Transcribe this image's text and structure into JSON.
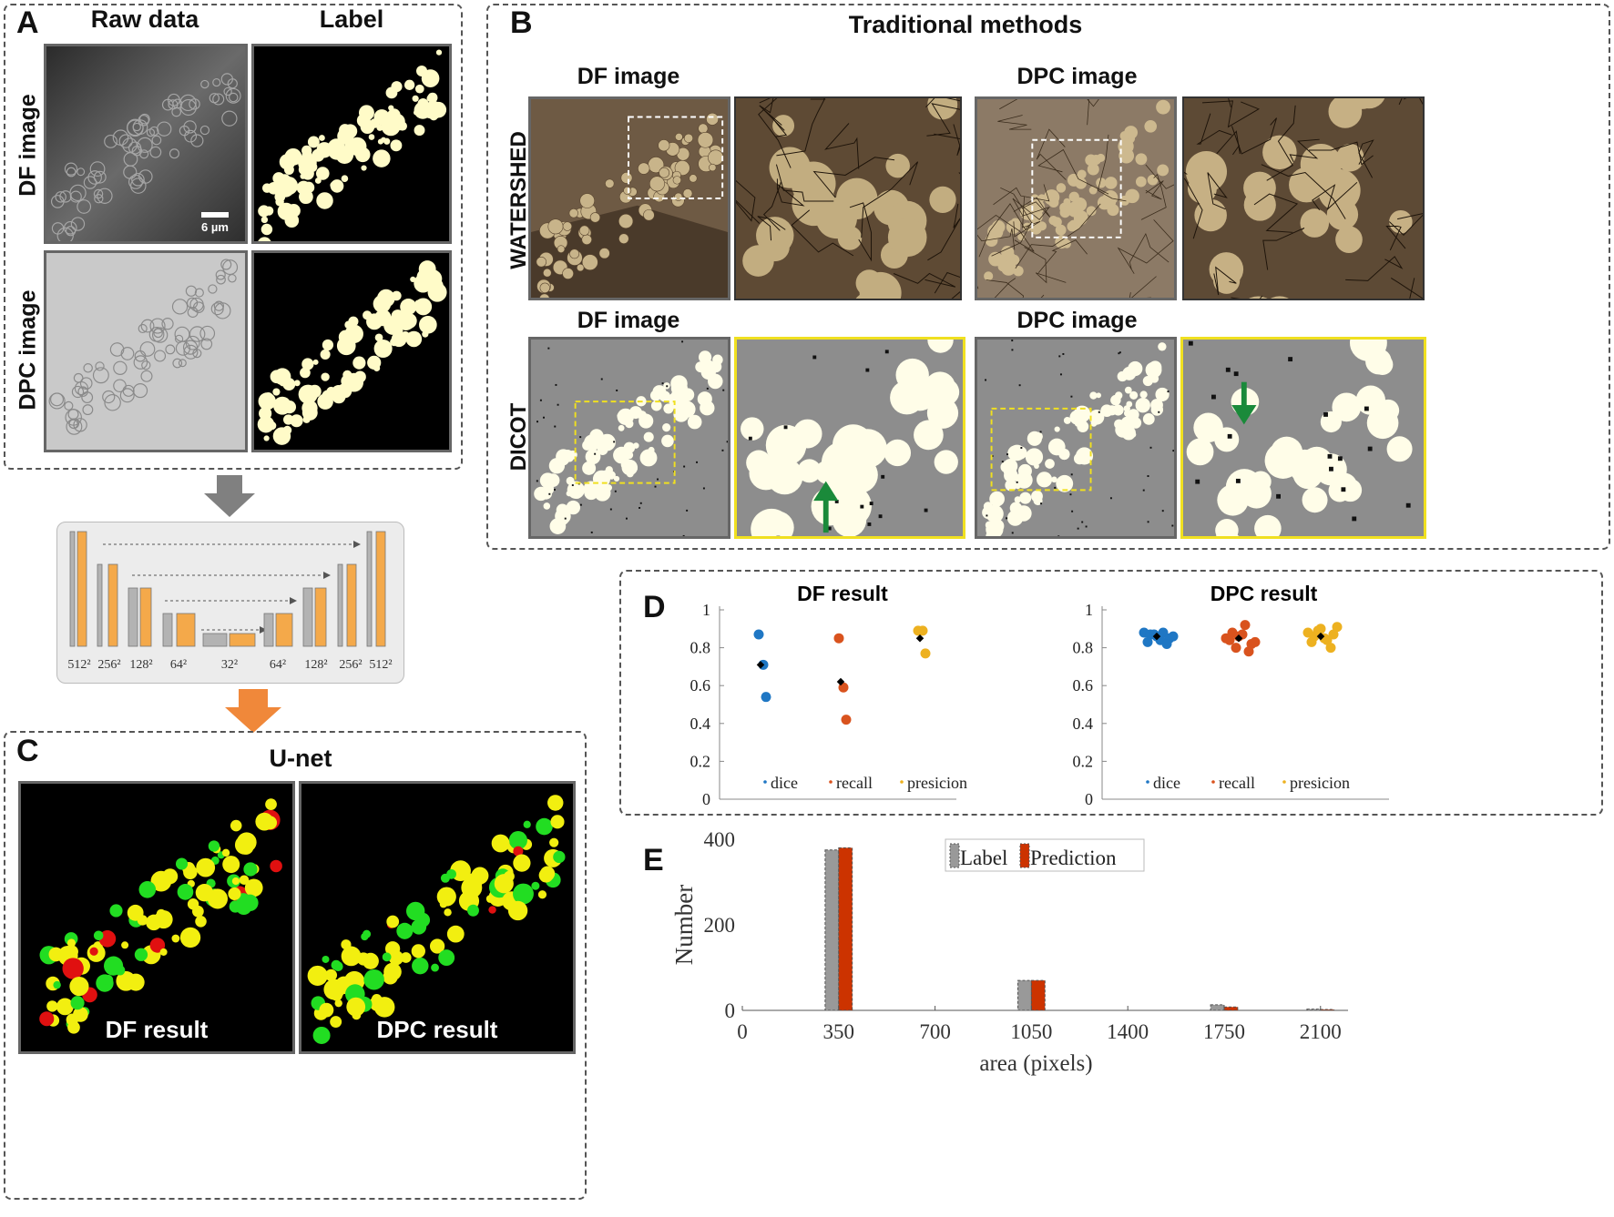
{
  "panel_a": {
    "letter": "A",
    "col_headers": [
      "Raw data",
      "Label"
    ],
    "row_labels": [
      "DF image",
      "DPC image"
    ],
    "scale_bar": "6 µm"
  },
  "unet_diagram": {
    "sizes": [
      "512²",
      "256²",
      "128²",
      "64²",
      "32²",
      "64²",
      "128²",
      "256²",
      "512²"
    ]
  },
  "panel_b": {
    "letter": "B",
    "title": "Traditional methods",
    "col_labels": [
      "DF image",
      "DPC image"
    ],
    "row_labels": [
      "WATERSHED",
      "DICOT"
    ]
  },
  "panel_c": {
    "letter": "C",
    "title": "U-net",
    "captions": [
      "DF result",
      "DPC result"
    ]
  },
  "panel_d": {
    "letter": "D",
    "plots": [
      {
        "title": "DF result",
        "legend": [
          "dice",
          "recall",
          "presicion"
        ]
      },
      {
        "title": "DPC result",
        "legend": [
          "dice",
          "recall",
          "presicion"
        ]
      }
    ],
    "yticks": [
      "0",
      "0.2",
      "0.4",
      "0.6",
      "0.8",
      "1"
    ]
  },
  "panel_e": {
    "letter": "E"
  },
  "colors": {
    "dice": "#1f77c4",
    "recall": "#d9531e",
    "precision": "#edb120",
    "label_bar": "#999999",
    "prediction_bar": "#cc3300"
  },
  "chart_data": [
    {
      "type": "scatter",
      "title": "DF result",
      "ylim": [
        0,
        1
      ],
      "legend": [
        "dice",
        "recall",
        "presicion"
      ],
      "series": [
        {
          "name": "dice",
          "values": [
            0.87,
            0.71,
            0.54
          ],
          "mean": 0.71
        },
        {
          "name": "recall",
          "values": [
            0.85,
            0.59,
            0.42
          ],
          "mean": 0.62
        },
        {
          "name": "presicion",
          "values": [
            0.89,
            0.89,
            0.77
          ],
          "mean": 0.85
        }
      ]
    },
    {
      "type": "scatter",
      "title": "DPC result",
      "ylim": [
        0,
        1
      ],
      "legend": [
        "dice",
        "recall",
        "presicion"
      ],
      "series": [
        {
          "name": "dice",
          "values": [
            0.88,
            0.87,
            0.86,
            0.88,
            0.85,
            0.83,
            0.87,
            0.84,
            0.82,
            0.86
          ],
          "mean": 0.86
        },
        {
          "name": "recall",
          "values": [
            0.85,
            0.88,
            0.86,
            0.92,
            0.82,
            0.84,
            0.8,
            0.87,
            0.78,
            0.83
          ],
          "mean": 0.85
        },
        {
          "name": "presicion",
          "values": [
            0.88,
            0.86,
            0.9,
            0.84,
            0.87,
            0.83,
            0.89,
            0.85,
            0.8,
            0.91
          ],
          "mean": 0.86
        }
      ]
    },
    {
      "type": "bar",
      "xlabel": "area (pixels)",
      "ylabel": "Number",
      "xlim": [
        0,
        2200
      ],
      "ylim": [
        0,
        400
      ],
      "xticks": [
        "0",
        "350",
        "700",
        "1050",
        "1400",
        "1750",
        "2100"
      ],
      "yticks": [
        "0",
        "200",
        "400"
      ],
      "bin_centers": [
        350,
        1050,
        1750,
        2100
      ],
      "series": [
        {
          "name": "Label",
          "values": [
            375,
            70,
            13,
            3
          ]
        },
        {
          "name": "Prediction",
          "values": [
            380,
            70,
            8,
            2
          ]
        }
      ]
    }
  ]
}
